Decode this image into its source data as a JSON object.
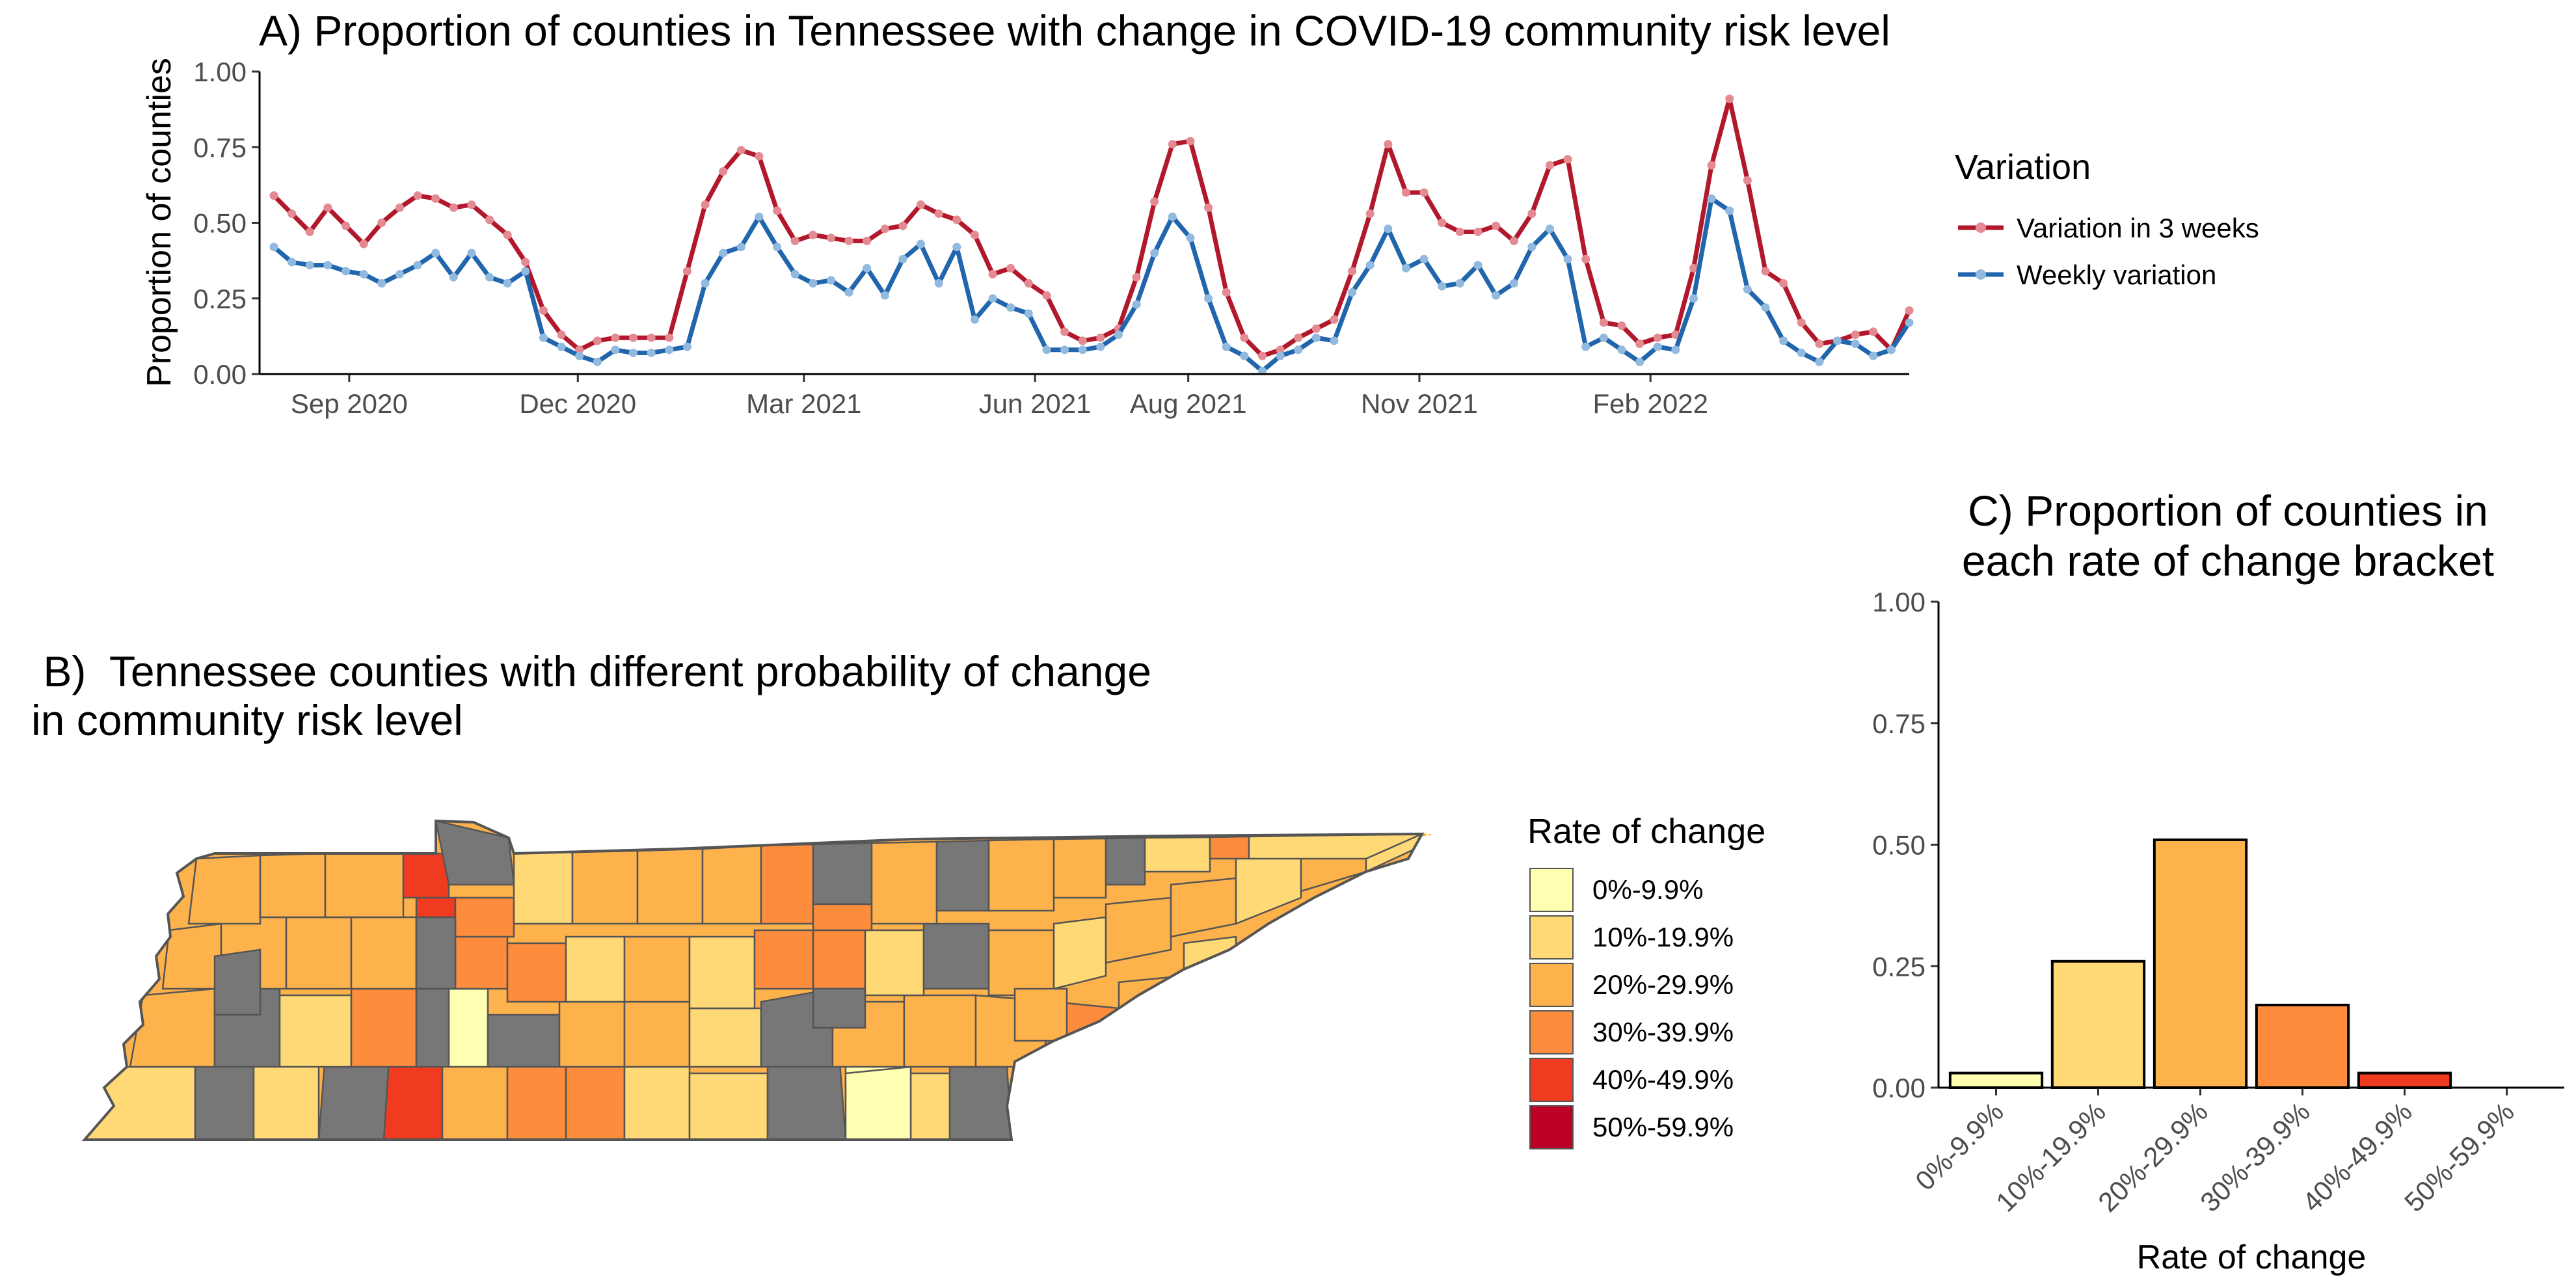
{
  "chart_data": [
    {
      "id": "A",
      "type": "line",
      "title": "A) Proportion of counties in Tennessee with change in COVID-19 community risk level",
      "ylabel": "Proportion of counties",
      "xlabel": "",
      "ylim": [
        0,
        1
      ],
      "yticks": [
        "0.00",
        "0.25",
        "0.50",
        "0.75",
        "1.00"
      ],
      "x_start": "2020-08-02",
      "x_end": "2022-05-15",
      "x_step": "weekly",
      "xticks": [
        {
          "label": "Sep 2020",
          "date": "2020-09-01"
        },
        {
          "label": "Dec 2020",
          "date": "2020-12-01"
        },
        {
          "label": "Mar 2021",
          "date": "2021-03-01"
        },
        {
          "label": "Jun 2021",
          "date": "2021-06-01"
        },
        {
          "label": "Aug 2021",
          "date": "2021-08-01"
        },
        {
          "label": "Nov 2021",
          "date": "2021-11-01"
        },
        {
          "label": "Feb 2022",
          "date": "2022-02-01"
        }
      ],
      "legend_title": "Variation",
      "legend_position": "right",
      "series": [
        {
          "name": "Variation in 3 weeks",
          "color": "#B2182B",
          "point_color": "#E38A93",
          "values": [
            0.59,
            0.53,
            0.47,
            0.55,
            0.49,
            0.43,
            0.5,
            0.55,
            0.59,
            0.58,
            0.55,
            0.56,
            0.51,
            0.46,
            0.37,
            0.21,
            0.13,
            0.08,
            0.11,
            0.12,
            0.12,
            0.12,
            0.12,
            0.34,
            0.56,
            0.67,
            0.74,
            0.72,
            0.54,
            0.44,
            0.46,
            0.45,
            0.44,
            0.44,
            0.48,
            0.49,
            0.56,
            0.53,
            0.51,
            0.46,
            0.33,
            0.35,
            0.3,
            0.26,
            0.14,
            0.11,
            0.12,
            0.15,
            0.32,
            0.57,
            0.76,
            0.77,
            0.55,
            0.27,
            0.12,
            0.06,
            0.08,
            0.12,
            0.15,
            0.18,
            0.34,
            0.53,
            0.76,
            0.6,
            0.6,
            0.5,
            0.47,
            0.47,
            0.49,
            0.44,
            0.53,
            0.69,
            0.71,
            0.38,
            0.17,
            0.16,
            0.1,
            0.12,
            0.13,
            0.35,
            0.69,
            0.91,
            0.64,
            0.34,
            0.3,
            0.17,
            0.1,
            0.11,
            0.13,
            0.14,
            0.08,
            0.21
          ]
        },
        {
          "name": "Weekly variation",
          "color": "#2166AC",
          "point_color": "#92B9DE",
          "values": [
            0.42,
            0.37,
            0.36,
            0.36,
            0.34,
            0.33,
            0.3,
            0.33,
            0.36,
            0.4,
            0.32,
            0.4,
            0.32,
            0.3,
            0.34,
            0.12,
            0.09,
            0.06,
            0.04,
            0.08,
            0.07,
            0.07,
            0.08,
            0.09,
            0.3,
            0.4,
            0.42,
            0.52,
            0.42,
            0.33,
            0.3,
            0.31,
            0.27,
            0.35,
            0.26,
            0.38,
            0.43,
            0.3,
            0.42,
            0.18,
            0.25,
            0.22,
            0.2,
            0.08,
            0.08,
            0.08,
            0.09,
            0.13,
            0.23,
            0.4,
            0.52,
            0.45,
            0.25,
            0.09,
            0.06,
            0.01,
            0.06,
            0.08,
            0.12,
            0.11,
            0.27,
            0.36,
            0.48,
            0.35,
            0.38,
            0.29,
            0.3,
            0.36,
            0.26,
            0.3,
            0.42,
            0.48,
            0.38,
            0.09,
            0.12,
            0.08,
            0.04,
            0.09,
            0.08,
            0.25,
            0.58,
            0.54,
            0.28,
            0.22,
            0.11,
            0.07,
            0.04,
            0.11,
            0.1,
            0.06,
            0.08,
            0.17
          ]
        }
      ]
    },
    {
      "id": "B",
      "type": "map",
      "title_line1": " B)  Tennessee counties with different probability of change",
      "title_line2": "in community risk level",
      "legend_title": "Rate of change",
      "missing_color": "#777777",
      "legend": [
        {
          "label": "0%-9.9%",
          "color": "#FFFFB2"
        },
        {
          "label": "10%-19.9%",
          "color": "#FED976"
        },
        {
          "label": "20%-29.9%",
          "color": "#FEB24C"
        },
        {
          "label": "30%-39.9%",
          "color": "#FD8D3C"
        },
        {
          "label": "40%-49.9%",
          "color": "#F03B20"
        },
        {
          "label": "50%-59.9%",
          "color": "#BD0026"
        }
      ]
    },
    {
      "id": "C",
      "type": "bar",
      "title_line1": "C) Proportion of counties in",
      "title_line2": "each rate of change bracket",
      "xlabel": "Rate of change",
      "ylabel": "",
      "ylim": [
        0,
        1
      ],
      "yticks": [
        "0.00",
        "0.25",
        "0.50",
        "0.75",
        "1.00"
      ],
      "categories": [
        "0%-9.9%",
        "10%-19.9%",
        "20%-29.9%",
        "30%-39.9%",
        "40%-49.9%",
        "50%-59.9%"
      ],
      "values": [
        0.03,
        0.26,
        0.51,
        0.17,
        0.03,
        0.0
      ],
      "colors": [
        "#FFFFB2",
        "#FED976",
        "#FEB24C",
        "#FD8D3C",
        "#F03B20",
        "#BD0026"
      ]
    }
  ]
}
